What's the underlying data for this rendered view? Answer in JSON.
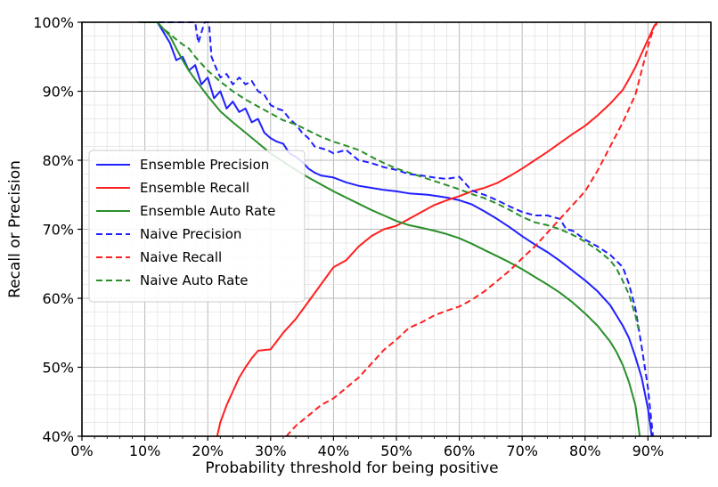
{
  "chart_data": {
    "type": "line",
    "title": "",
    "xlabel": "Probability threshold for being positive",
    "ylabel": "Recall or Precision",
    "xlim": [
      0,
      100
    ],
    "ylim": [
      40,
      100
    ],
    "x_ticks": [
      "0%",
      "10%",
      "20%",
      "30%",
      "40%",
      "50%",
      "60%",
      "70%",
      "80%",
      "90%"
    ],
    "y_ticks": [
      "40%",
      "50%",
      "60%",
      "70%",
      "80%",
      "90%",
      "100%"
    ],
    "grid": "major and minor",
    "legend_position": "center-left",
    "series": [
      {
        "name": "Ensemble Precision",
        "color": "#1f1fff",
        "dash": "solid",
        "points": [
          [
            9,
            100
          ],
          [
            12,
            100
          ],
          [
            13,
            98.5
          ],
          [
            14,
            97
          ],
          [
            15,
            94.5
          ],
          [
            16,
            95
          ],
          [
            17,
            93
          ],
          [
            18,
            93.8
          ],
          [
            19,
            91
          ],
          [
            20,
            92
          ],
          [
            21,
            89
          ],
          [
            22,
            90
          ],
          [
            23,
            87.5
          ],
          [
            24,
            88.5
          ],
          [
            25,
            87
          ],
          [
            26,
            87.5
          ],
          [
            27,
            85.5
          ],
          [
            28,
            86
          ],
          [
            29,
            84
          ],
          [
            30,
            83.2
          ],
          [
            31,
            82.7
          ],
          [
            32,
            82.4
          ],
          [
            33,
            81
          ],
          [
            34,
            80.5
          ],
          [
            35,
            79.8
          ],
          [
            36,
            78.8
          ],
          [
            37,
            78.2
          ],
          [
            38,
            77.8
          ],
          [
            40,
            77.5
          ],
          [
            42,
            76.8
          ],
          [
            44,
            76.3
          ],
          [
            46,
            76
          ],
          [
            48,
            75.7
          ],
          [
            50,
            75.5
          ],
          [
            52,
            75.2
          ],
          [
            55,
            75
          ],
          [
            58,
            74.6
          ],
          [
            60,
            74.2
          ],
          [
            62,
            73.6
          ],
          [
            64,
            72.6
          ],
          [
            66,
            71.5
          ],
          [
            68,
            70.3
          ],
          [
            70,
            69
          ],
          [
            72,
            67.8
          ],
          [
            74,
            66.7
          ],
          [
            76,
            65.4
          ],
          [
            78,
            64
          ],
          [
            80,
            62.6
          ],
          [
            82,
            61
          ],
          [
            84,
            59
          ],
          [
            85,
            57.5
          ],
          [
            86,
            56
          ],
          [
            87,
            54.2
          ],
          [
            88,
            51.5
          ],
          [
            89,
            48.5
          ],
          [
            90,
            44
          ],
          [
            90.6,
            40
          ]
        ]
      },
      {
        "name": "Ensemble Recall",
        "color": "#ff2020",
        "dash": "solid",
        "points": [
          [
            21.5,
            40
          ],
          [
            22,
            42
          ],
          [
            23,
            44.5
          ],
          [
            24,
            46.5
          ],
          [
            25,
            48.5
          ],
          [
            26,
            50
          ],
          [
            27,
            51.3
          ],
          [
            28,
            52.4
          ],
          [
            30,
            52.6
          ],
          [
            31,
            53.8
          ],
          [
            32,
            55
          ],
          [
            34,
            57
          ],
          [
            36,
            59.5
          ],
          [
            38,
            62
          ],
          [
            40,
            64.5
          ],
          [
            42,
            65.5
          ],
          [
            44,
            67.5
          ],
          [
            46,
            69
          ],
          [
            48,
            70
          ],
          [
            50,
            70.5
          ],
          [
            52,
            71.5
          ],
          [
            54,
            72.5
          ],
          [
            56,
            73.5
          ],
          [
            58,
            74.2
          ],
          [
            60,
            74.8
          ],
          [
            62,
            75.5
          ],
          [
            64,
            76
          ],
          [
            66,
            76.7
          ],
          [
            68,
            77.7
          ],
          [
            70,
            78.8
          ],
          [
            72,
            80
          ],
          [
            74,
            81.2
          ],
          [
            76,
            82.5
          ],
          [
            78,
            83.8
          ],
          [
            80,
            85
          ],
          [
            82,
            86.5
          ],
          [
            84,
            88.2
          ],
          [
            86,
            90.2
          ],
          [
            87,
            91.8
          ],
          [
            88,
            93.5
          ],
          [
            89,
            95.5
          ],
          [
            90,
            97.5
          ],
          [
            91,
            99.5
          ],
          [
            91.5,
            100
          ]
        ]
      },
      {
        "name": "Ensemble Auto Rate",
        "color": "#2a8f2a",
        "dash": "solid",
        "points": [
          [
            9,
            100
          ],
          [
            12,
            100
          ],
          [
            13,
            99
          ],
          [
            14,
            98
          ],
          [
            15,
            96.2
          ],
          [
            16,
            94.5
          ],
          [
            17,
            93
          ],
          [
            18,
            91.7
          ],
          [
            20,
            89.3
          ],
          [
            22,
            87.1
          ],
          [
            24,
            85.5
          ],
          [
            26,
            84
          ],
          [
            28,
            82.5
          ],
          [
            30,
            81
          ],
          [
            32,
            79.8
          ],
          [
            34,
            78.6
          ],
          [
            36,
            77.5
          ],
          [
            38,
            76.5
          ],
          [
            40,
            75.5
          ],
          [
            42,
            74.6
          ],
          [
            44,
            73.7
          ],
          [
            46,
            72.8
          ],
          [
            48,
            72
          ],
          [
            50,
            71.2
          ],
          [
            52,
            70.6
          ],
          [
            54,
            70.2
          ],
          [
            56,
            69.8
          ],
          [
            58,
            69.3
          ],
          [
            60,
            68.7
          ],
          [
            62,
            67.9
          ],
          [
            64,
            67
          ],
          [
            66,
            66.1
          ],
          [
            68,
            65.2
          ],
          [
            70,
            64.2
          ],
          [
            72,
            63.1
          ],
          [
            74,
            62
          ],
          [
            76,
            60.8
          ],
          [
            78,
            59.4
          ],
          [
            80,
            57.8
          ],
          [
            82,
            56
          ],
          [
            84,
            53.7
          ],
          [
            85,
            52.2
          ],
          [
            86,
            50.3
          ],
          [
            87,
            47.8
          ],
          [
            88,
            44.5
          ],
          [
            88.7,
            40
          ]
        ]
      },
      {
        "name": "Naive Precision",
        "color": "#1f1fff",
        "dash": "dashed",
        "points": [
          [
            9,
            100
          ],
          [
            18,
            100
          ],
          [
            18.5,
            97
          ],
          [
            19,
            98.5
          ],
          [
            19.5,
            100
          ],
          [
            20.2,
            100
          ],
          [
            20.6,
            95
          ],
          [
            21.5,
            93
          ],
          [
            22,
            92
          ],
          [
            23,
            92.5
          ],
          [
            24,
            91
          ],
          [
            25,
            92
          ],
          [
            26,
            91
          ],
          [
            27,
            91.5
          ],
          [
            28,
            90
          ],
          [
            29,
            89.5
          ],
          [
            30,
            88
          ],
          [
            31,
            87.5
          ],
          [
            32,
            87.2
          ],
          [
            33,
            86
          ],
          [
            34,
            85.2
          ],
          [
            35,
            84
          ],
          [
            36,
            83.2
          ],
          [
            37,
            82
          ],
          [
            39,
            81.5
          ],
          [
            40,
            81
          ],
          [
            42,
            81.5
          ],
          [
            44,
            80
          ],
          [
            46,
            79.6
          ],
          [
            48,
            79
          ],
          [
            50,
            78.6
          ],
          [
            52,
            78
          ],
          [
            54,
            77.8
          ],
          [
            56,
            77.5
          ],
          [
            58,
            77.3
          ],
          [
            60,
            77.6
          ],
          [
            62,
            75.6
          ],
          [
            64,
            75
          ],
          [
            66,
            74.2
          ],
          [
            68,
            73.3
          ],
          [
            70,
            72.5
          ],
          [
            72,
            72
          ],
          [
            74,
            72
          ],
          [
            76,
            71.5
          ],
          [
            77,
            70
          ],
          [
            78,
            69.8
          ],
          [
            80,
            68.5
          ],
          [
            82,
            67.5
          ],
          [
            84,
            66.3
          ],
          [
            86,
            64.5
          ],
          [
            87,
            62
          ],
          [
            88,
            58.5
          ],
          [
            89,
            53
          ],
          [
            90,
            47
          ],
          [
            90.8,
            40
          ]
        ]
      },
      {
        "name": "Naive Recall",
        "color": "#ff2020",
        "dash": "dashed",
        "points": [
          [
            32.5,
            40
          ],
          [
            33,
            40.5
          ],
          [
            34,
            41.5
          ],
          [
            36,
            43
          ],
          [
            38,
            44.5
          ],
          [
            40,
            45.5
          ],
          [
            42,
            47
          ],
          [
            44,
            48.5
          ],
          [
            46,
            50.5
          ],
          [
            48,
            52.5
          ],
          [
            50,
            54
          ],
          [
            52,
            55.7
          ],
          [
            54,
            56.5
          ],
          [
            56,
            57.5
          ],
          [
            58,
            58.2
          ],
          [
            60,
            58.8
          ],
          [
            62,
            59.8
          ],
          [
            64,
            61
          ],
          [
            66,
            62.5
          ],
          [
            68,
            64
          ],
          [
            70,
            65.8
          ],
          [
            72,
            67.5
          ],
          [
            74,
            69.5
          ],
          [
            76,
            71.5
          ],
          [
            78,
            73.5
          ],
          [
            80,
            75.5
          ],
          [
            82,
            78.5
          ],
          [
            84,
            82
          ],
          [
            86,
            85.5
          ],
          [
            87,
            87.5
          ],
          [
            88,
            89.5
          ],
          [
            89,
            93
          ],
          [
            90,
            96.5
          ],
          [
            91,
            99.5
          ],
          [
            92,
            100
          ]
        ]
      },
      {
        "name": "Naive Auto Rate",
        "color": "#2a8f2a",
        "dash": "dashed",
        "points": [
          [
            9,
            100
          ],
          [
            12,
            100
          ],
          [
            13,
            99
          ],
          [
            14,
            98.3
          ],
          [
            15,
            97.5
          ],
          [
            16,
            96.8
          ],
          [
            17,
            96.2
          ],
          [
            18,
            95
          ],
          [
            20,
            93
          ],
          [
            22,
            91.4
          ],
          [
            24,
            90
          ],
          [
            26,
            88.8
          ],
          [
            28,
            87.8
          ],
          [
            30,
            86.8
          ],
          [
            32,
            85.8
          ],
          [
            34,
            85.2
          ],
          [
            36,
            84.3
          ],
          [
            38,
            83.4
          ],
          [
            40,
            82.7
          ],
          [
            42,
            82.1
          ],
          [
            44,
            81.5
          ],
          [
            46,
            80.5
          ],
          [
            48,
            79.6
          ],
          [
            50,
            78.8
          ],
          [
            52,
            78.2
          ],
          [
            54,
            77.6
          ],
          [
            56,
            77
          ],
          [
            58,
            76.4
          ],
          [
            60,
            75.8
          ],
          [
            62,
            75.1
          ],
          [
            64,
            74.5
          ],
          [
            66,
            73.7
          ],
          [
            68,
            72.8
          ],
          [
            70,
            71.8
          ],
          [
            72,
            71
          ],
          [
            74,
            70.6
          ],
          [
            76,
            70
          ],
          [
            78,
            69.2
          ],
          [
            80,
            68.2
          ],
          [
            82,
            67
          ],
          [
            84,
            65.5
          ],
          [
            85,
            64.3
          ],
          [
            86,
            62.5
          ],
          [
            87,
            60.5
          ],
          [
            88,
            57.5
          ],
          [
            88.5,
            55.5
          ]
        ]
      }
    ]
  }
}
